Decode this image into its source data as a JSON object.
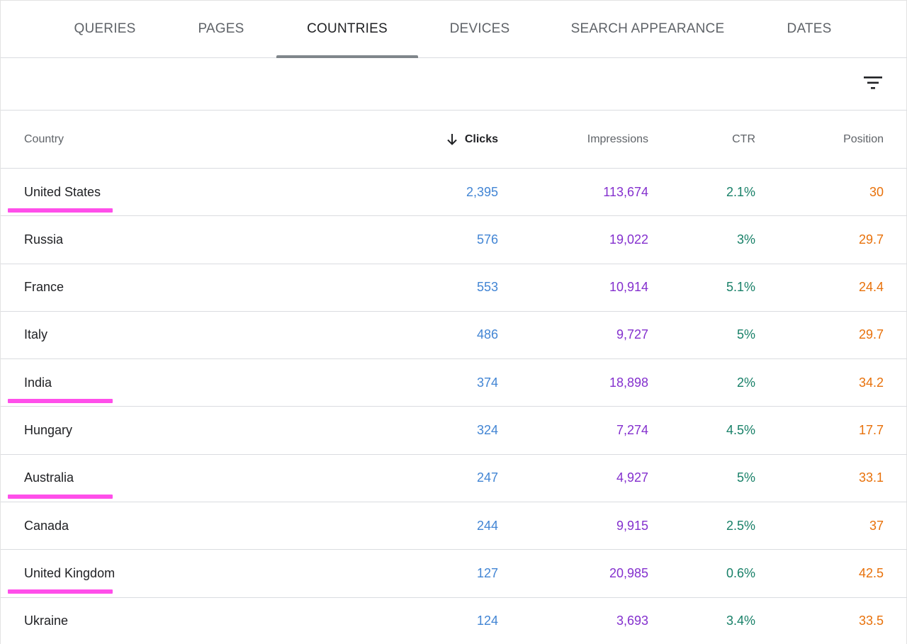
{
  "tabs": [
    {
      "label": "QUERIES",
      "active": false
    },
    {
      "label": "PAGES",
      "active": false
    },
    {
      "label": "COUNTRIES",
      "active": true
    },
    {
      "label": "DEVICES",
      "active": false
    },
    {
      "label": "SEARCH APPEARANCE",
      "active": false
    },
    {
      "label": "DATES",
      "active": false
    }
  ],
  "toolbar": {
    "filter_icon": "filter-list-icon"
  },
  "table": {
    "headers": {
      "country": "Country",
      "clicks": "Clicks",
      "impressions": "Impressions",
      "ctr": "CTR",
      "position": "Position"
    },
    "sort": {
      "column": "clicks",
      "direction": "descending",
      "icon": "arrow-down-icon"
    },
    "rows": [
      {
        "country": "United States",
        "clicks": "2,395",
        "impressions": "113,674",
        "ctr": "2.1%",
        "position": "30",
        "highlighted": true
      },
      {
        "country": "Russia",
        "clicks": "576",
        "impressions": "19,022",
        "ctr": "3%",
        "position": "29.7",
        "highlighted": false
      },
      {
        "country": "France",
        "clicks": "553",
        "impressions": "10,914",
        "ctr": "5.1%",
        "position": "24.4",
        "highlighted": false
      },
      {
        "country": "Italy",
        "clicks": "486",
        "impressions": "9,727",
        "ctr": "5%",
        "position": "29.7",
        "highlighted": false
      },
      {
        "country": "India",
        "clicks": "374",
        "impressions": "18,898",
        "ctr": "2%",
        "position": "34.2",
        "highlighted": true
      },
      {
        "country": "Hungary",
        "clicks": "324",
        "impressions": "7,274",
        "ctr": "4.5%",
        "position": "17.7",
        "highlighted": false
      },
      {
        "country": "Australia",
        "clicks": "247",
        "impressions": "4,927",
        "ctr": "5%",
        "position": "33.1",
        "highlighted": true
      },
      {
        "country": "Canada",
        "clicks": "244",
        "impressions": "9,915",
        "ctr": "2.5%",
        "position": "37",
        "highlighted": false
      },
      {
        "country": "United Kingdom",
        "clicks": "127",
        "impressions": "20,985",
        "ctr": "0.6%",
        "position": "42.5",
        "highlighted": true
      },
      {
        "country": "Ukraine",
        "clicks": "124",
        "impressions": "3,693",
        "ctr": "3.4%",
        "position": "33.5",
        "highlighted": false
      }
    ]
  },
  "colors": {
    "clicks": "#4285d4",
    "impressions": "#8430ce",
    "ctr": "#188068",
    "position": "#e8710a",
    "highlight": "#ff4fea"
  }
}
